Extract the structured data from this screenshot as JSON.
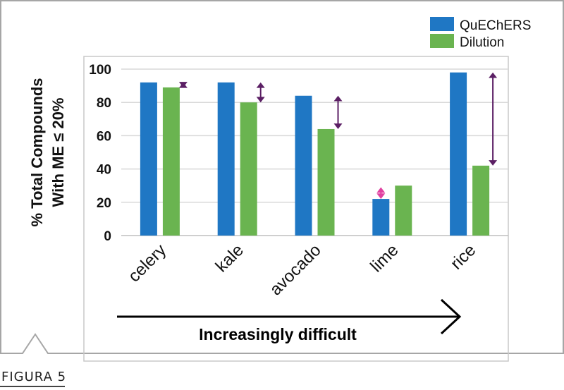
{
  "figure_label": "FIGURA 5",
  "colors": {
    "quechers": "#1f77c4",
    "dilution": "#6ab450",
    "arrow_dark": "#5b1f64",
    "arrow_pink": "#e040a0",
    "grid": "#d9d9d9"
  },
  "chart_data": {
    "type": "bar",
    "categories": [
      "celery",
      "kale",
      "avocado",
      "lime",
      "rice"
    ],
    "series": [
      {
        "name": "QuEChERS",
        "values": [
          92,
          92,
          84,
          22,
          98
        ]
      },
      {
        "name": "Dilution",
        "values": [
          89,
          80,
          64,
          30,
          42
        ]
      }
    ],
    "ylabel_line1": "% Total Compounds",
    "ylabel_line2": "With ME ≤ 20%",
    "xlabel": "Increasingly difficult",
    "ylim": [
      0,
      100
    ],
    "yticks": [
      0,
      20,
      40,
      60,
      80,
      100
    ],
    "grid": true,
    "legend": "top-right"
  }
}
